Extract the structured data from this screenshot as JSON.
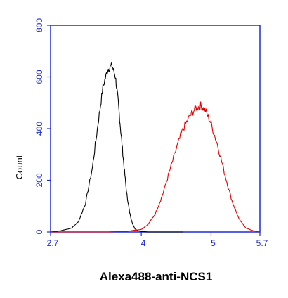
{
  "chart_data": {
    "type": "line",
    "xlabel": "Alexa488-anti-NCS1",
    "ylabel": "Count",
    "x_scale": "log",
    "xlim": [
      2.7,
      5.7
    ],
    "ylim": [
      0,
      800
    ],
    "x_tick_labels": [
      "2.7",
      "4",
      "5",
      "5.7"
    ],
    "x_tick_values": [
      2.7,
      4,
      5,
      5.7
    ],
    "y_ticks": [
      0,
      200,
      400,
      600,
      800
    ],
    "grid": false,
    "legend": "none",
    "series": [
      {
        "color": "#000000",
        "x": [
          2.7,
          2.85,
          3.0,
          3.1,
          3.2,
          3.3,
          3.38,
          3.45,
          3.52,
          3.58,
          3.63,
          3.67,
          3.71,
          3.75,
          3.79,
          3.83,
          3.87,
          3.91,
          3.95,
          4.0,
          4.1,
          4.3,
          4.6
        ],
        "y": [
          0,
          5,
          15,
          40,
          110,
          250,
          420,
          560,
          630,
          645,
          600,
          500,
          380,
          260,
          150,
          80,
          35,
          12,
          5,
          2,
          0,
          0,
          0
        ]
      },
      {
        "color": "#e00000",
        "x": [
          2.7,
          3.5,
          3.8,
          4.0,
          4.1,
          4.2,
          4.3,
          4.4,
          4.5,
          4.6,
          4.7,
          4.78,
          4.85,
          4.92,
          5.0,
          5.1,
          5.2,
          5.3,
          5.4,
          5.5,
          5.6,
          5.7
        ],
        "y": [
          0,
          0,
          3,
          10,
          30,
          70,
          140,
          230,
          320,
          400,
          450,
          480,
          490,
          470,
          420,
          330,
          220,
          120,
          50,
          15,
          5,
          0
        ]
      }
    ]
  }
}
